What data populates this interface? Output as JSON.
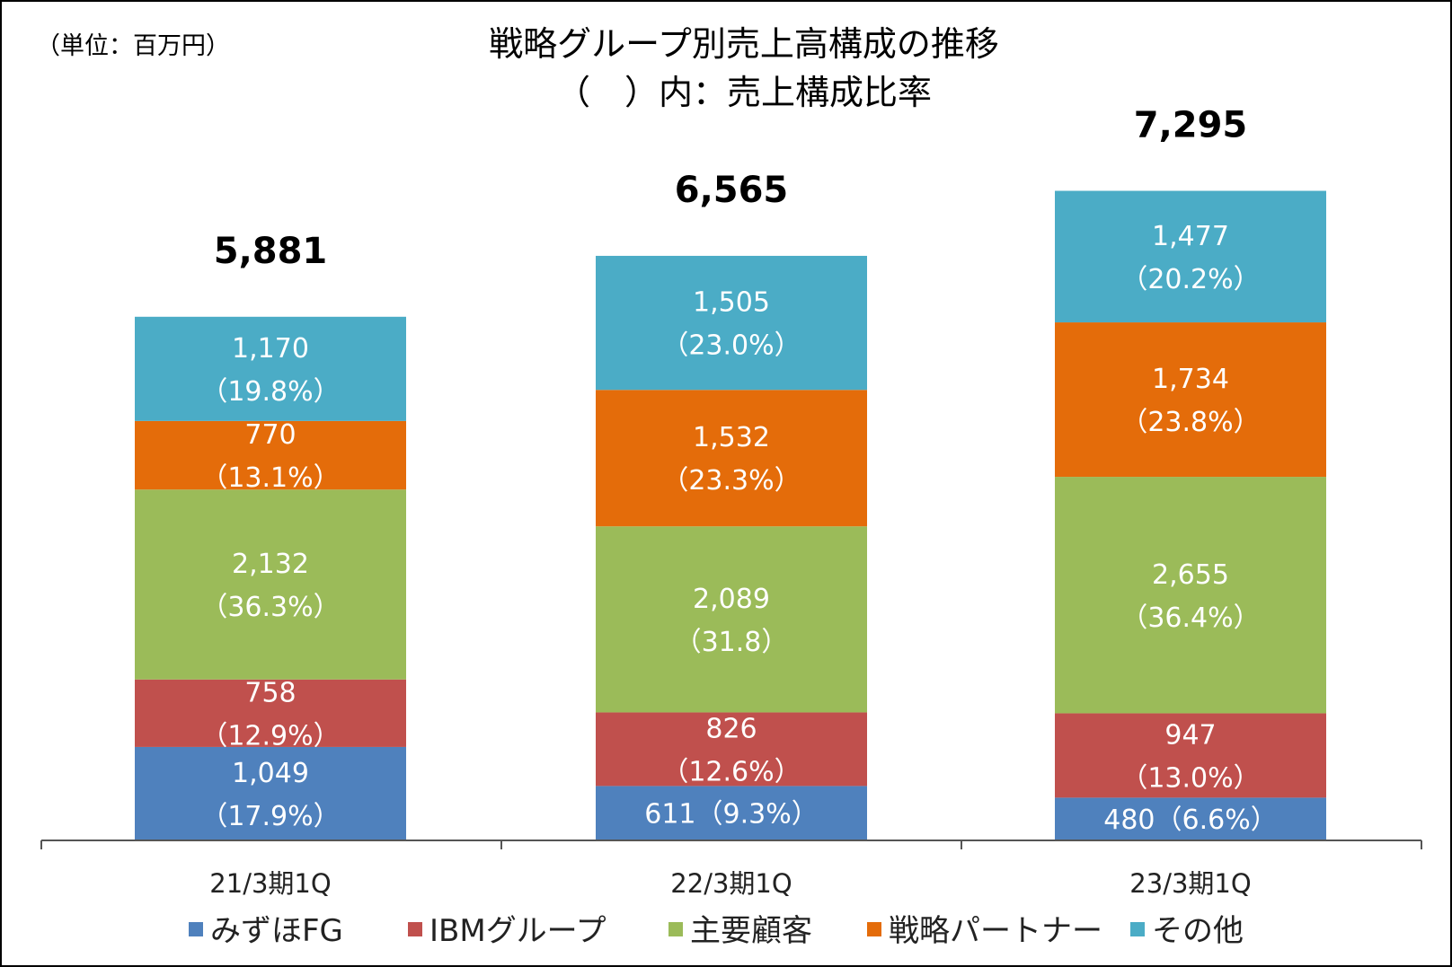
{
  "chart_data": {
    "type": "bar",
    "stacked": true,
    "unit_note": "（単位：百万円）",
    "title": "戦略グループ別売上高構成の推移",
    "subtitle": "（　）内：売上構成比率",
    "categories": [
      "21/3期1Q",
      "22/3期1Q",
      "23/3期1Q"
    ],
    "totals": [
      5881,
      6565,
      7295
    ],
    "total_labels": [
      "5,881",
      "6,565",
      "7,295"
    ],
    "series": [
      {
        "name": "みずほFG",
        "color": "#4F81BD",
        "values": [
          1049,
          611,
          480
        ],
        "labels": [
          [
            "1,049",
            "（17.9%）"
          ],
          [
            "611（9.3%）"
          ],
          [
            "480（6.6%）"
          ]
        ]
      },
      {
        "name": "IBMグループ",
        "color": "#C0504D",
        "values": [
          758,
          826,
          947
        ],
        "labels": [
          [
            "758",
            "（12.9%）"
          ],
          [
            "826",
            "（12.6%）"
          ],
          [
            "947",
            "（13.0%）"
          ]
        ]
      },
      {
        "name": "主要顧客",
        "color": "#9BBB59",
        "values": [
          2132,
          2089,
          2655
        ],
        "labels": [
          [
            "2,132",
            "（36.3%）"
          ],
          [
            "2,089",
            "（31.8）"
          ],
          [
            "2,655",
            "（36.4%）"
          ]
        ]
      },
      {
        "name": "戦略パートナー",
        "color": "#E46C0A",
        "values": [
          770,
          1532,
          1734
        ],
        "labels": [
          [
            "770",
            "（13.1%）"
          ],
          [
            "1,532",
            "（23.3%）"
          ],
          [
            "1,734",
            "（23.8%）"
          ]
        ]
      },
      {
        "name": "その他",
        "color": "#4BACC6",
        "values": [
          1170,
          1505,
          1477
        ],
        "labels": [
          [
            "1,170",
            "（19.8%）"
          ],
          [
            "1,505",
            "（23.0%）"
          ],
          [
            "1,477",
            "（20.2%）"
          ]
        ]
      }
    ],
    "legend_position": "bottom",
    "grid": false
  }
}
